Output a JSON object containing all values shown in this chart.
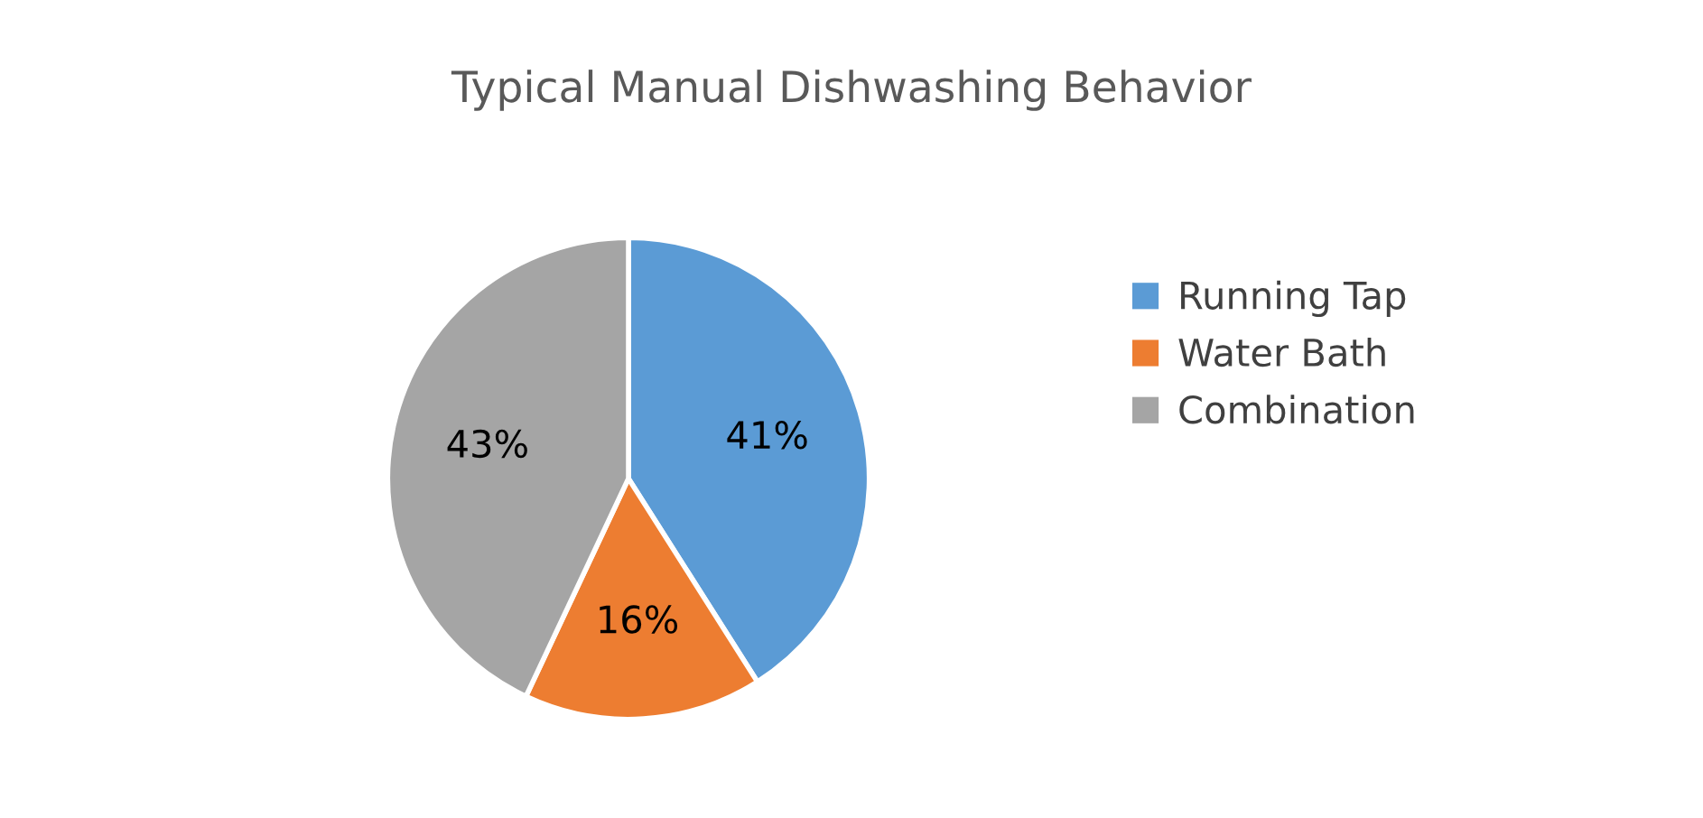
{
  "chart_data": {
    "type": "pie",
    "title": "Typical Manual Dishwashing Behavior",
    "categories": [
      "Running Tap",
      "Water Bath",
      "Combination"
    ],
    "values": [
      41,
      16,
      43
    ],
    "value_labels": [
      "41%",
      "16%",
      "43%"
    ],
    "colors": [
      "#5b9bd5",
      "#ed7d31",
      "#a5a5a5"
    ],
    "legend": "right"
  }
}
